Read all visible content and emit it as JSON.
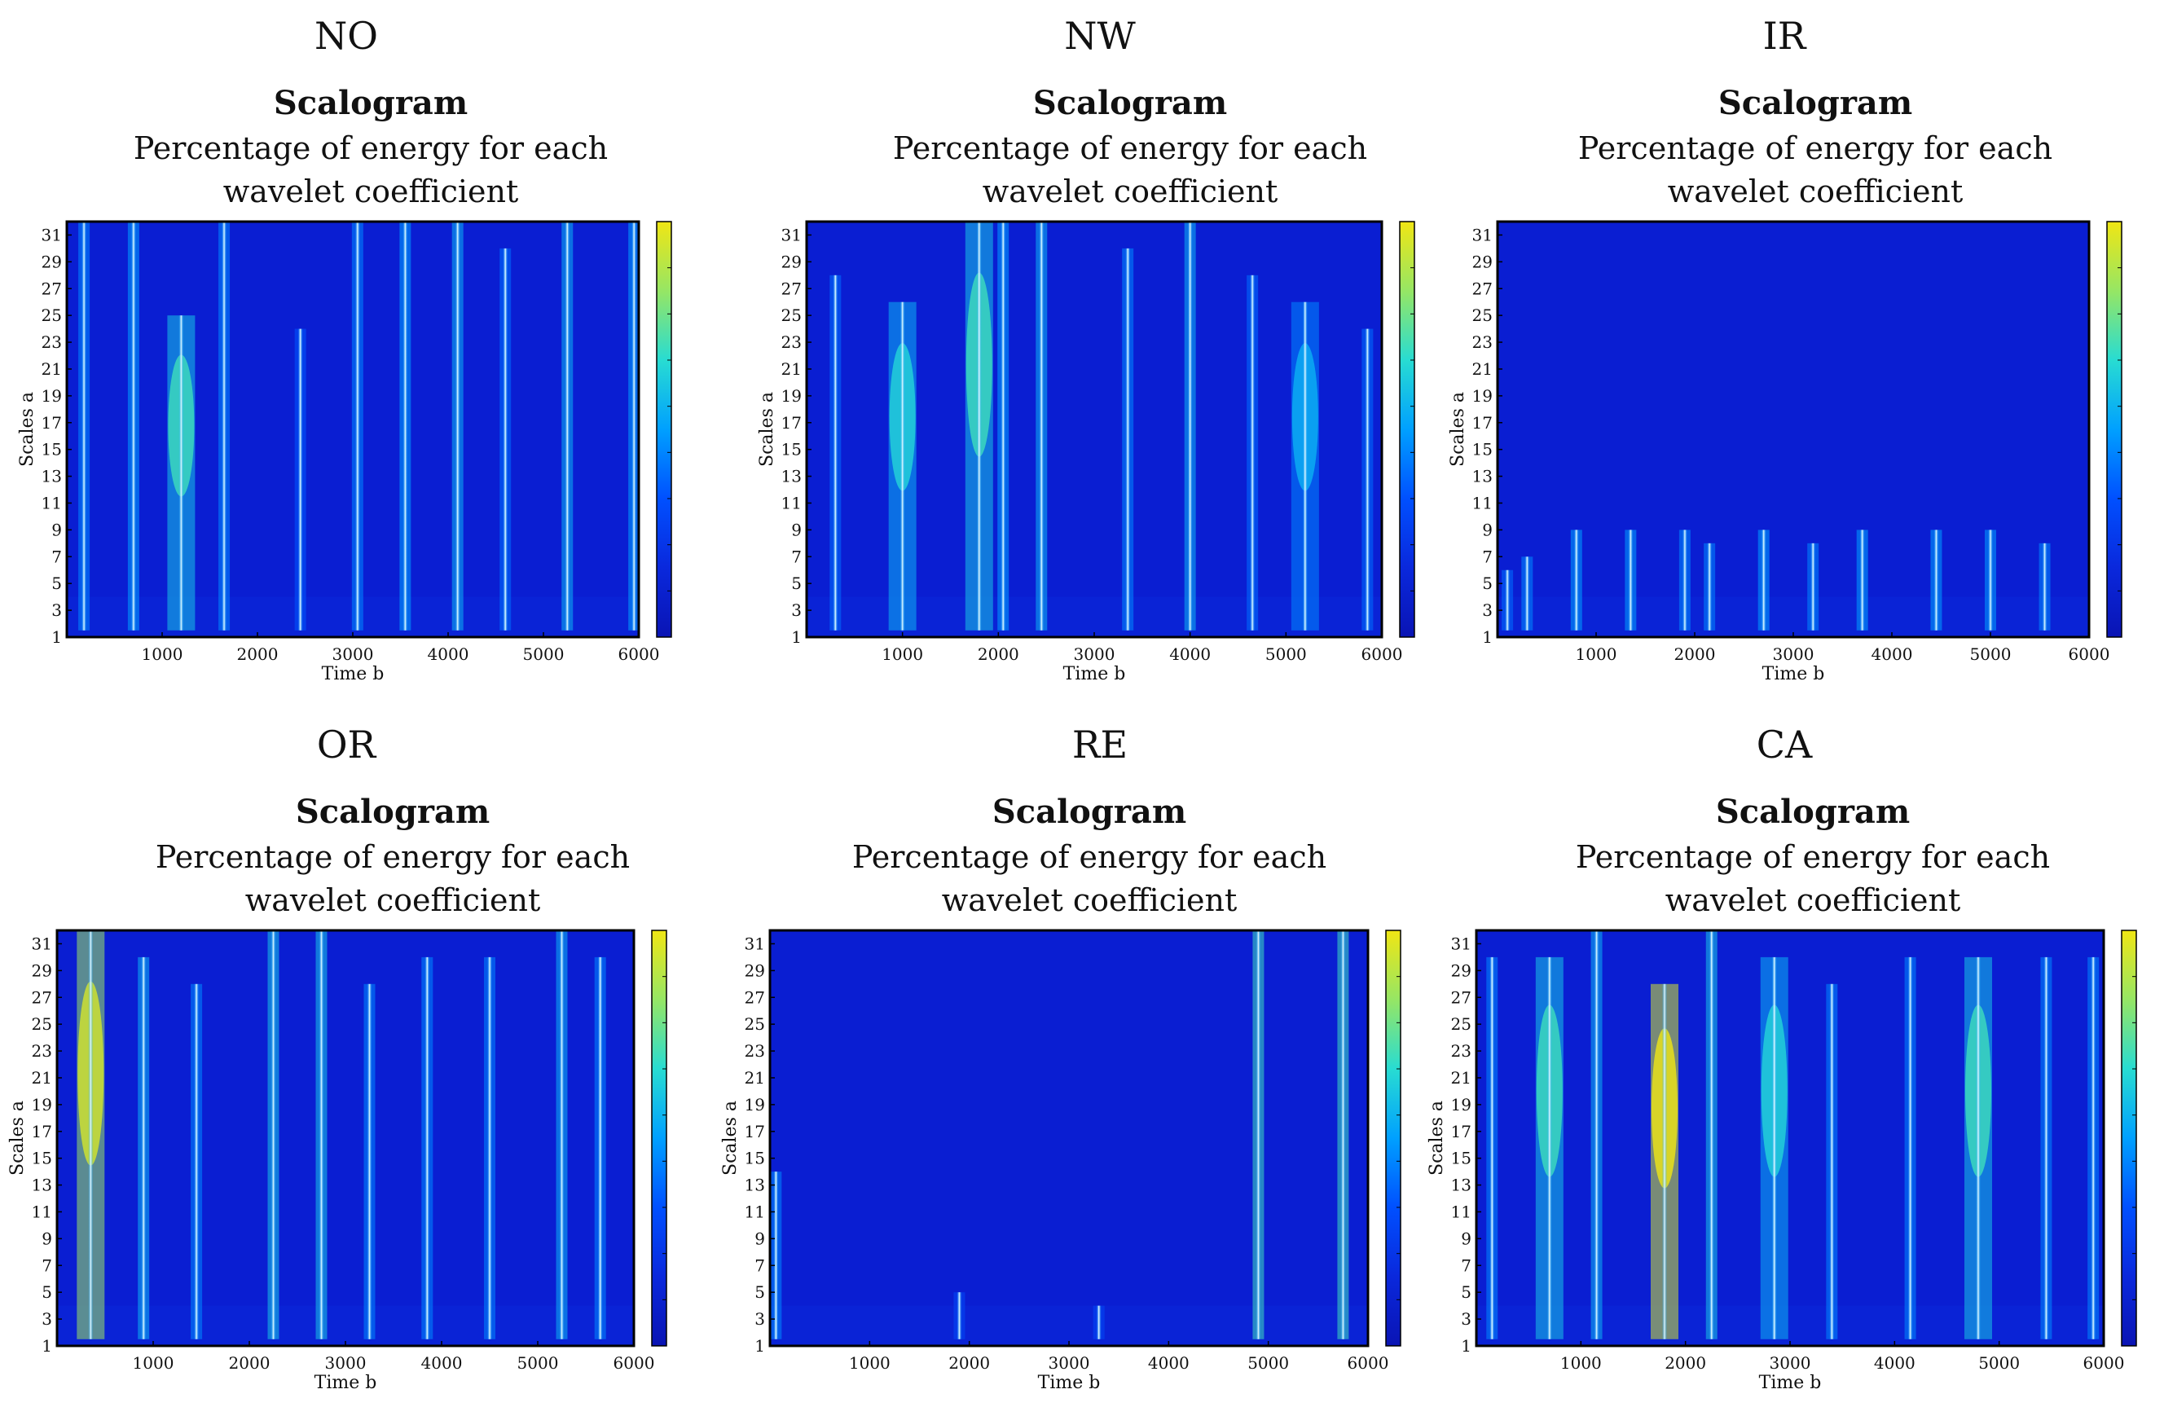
{
  "common": {
    "chart_title": "Scalogram",
    "subtitle_line1": "Percentage of energy for each",
    "subtitle_line2": "wavelet coefficient",
    "xlabel": "Time b",
    "ylabel": "Scales a",
    "x_ticks": [
      1000,
      2000,
      3000,
      4000,
      5000,
      6000
    ],
    "y_ticks": [
      1,
      3,
      5,
      7,
      9,
      11,
      13,
      15,
      17,
      19,
      21,
      23,
      25,
      27,
      29,
      31
    ],
    "xlim": [
      0,
      6000
    ],
    "ylim": [
      1,
      32
    ]
  },
  "colors": {
    "background": "#0a1ed2",
    "colormap": [
      "#0a14b4",
      "#0a28dc",
      "#0050ff",
      "#00a0ff",
      "#28dcd2",
      "#96e664",
      "#f0e614"
    ]
  },
  "chart_data": [
    {
      "type": "heatmap",
      "label": "NO",
      "title": "Scalogram",
      "xlabel": "Time b",
      "ylabel": "Scales a",
      "xlim": [
        0,
        6000
      ],
      "ylim": [
        1,
        32
      ],
      "ridges": [
        {
          "t": 180,
          "top": 32,
          "peak": 0.45
        },
        {
          "t": 700,
          "top": 32,
          "peak": 0.5
        },
        {
          "t": 1200,
          "top": 25,
          "peak": 0.6,
          "broad": true
        },
        {
          "t": 1650,
          "top": 32,
          "peak": 0.45
        },
        {
          "t": 2450,
          "top": 24,
          "peak": 0.35
        },
        {
          "t": 3050,
          "top": 32,
          "peak": 0.45
        },
        {
          "t": 3550,
          "top": 32,
          "peak": 0.5
        },
        {
          "t": 4100,
          "top": 32,
          "peak": 0.55
        },
        {
          "t": 4600,
          "top": 30,
          "peak": 0.4
        },
        {
          "t": 5250,
          "top": 32,
          "peak": 0.55
        },
        {
          "t": 5950,
          "top": 32,
          "peak": 0.5
        }
      ]
    },
    {
      "type": "heatmap",
      "label": "NW",
      "title": "Scalogram",
      "xlabel": "Time b",
      "ylabel": "Scales a",
      "xlim": [
        0,
        6000
      ],
      "ylim": [
        1,
        32
      ],
      "ridges": [
        {
          "t": 300,
          "top": 28,
          "peak": 0.4
        },
        {
          "t": 1000,
          "top": 26,
          "peak": 0.55,
          "broad": true
        },
        {
          "t": 1800,
          "top": 32,
          "peak": 0.6,
          "broad": true
        },
        {
          "t": 2050,
          "top": 32,
          "peak": 0.5
        },
        {
          "t": 2450,
          "top": 32,
          "peak": 0.55
        },
        {
          "t": 3350,
          "top": 30,
          "peak": 0.45
        },
        {
          "t": 4000,
          "top": 32,
          "peak": 0.55
        },
        {
          "t": 4650,
          "top": 28,
          "peak": 0.4
        },
        {
          "t": 5200,
          "top": 26,
          "peak": 0.45,
          "broad": true
        },
        {
          "t": 5850,
          "top": 24,
          "peak": 0.4
        }
      ]
    },
    {
      "type": "heatmap",
      "label": "IR",
      "title": "Scalogram",
      "xlabel": "Time b",
      "ylabel": "Scales a",
      "xlim": [
        0,
        6000
      ],
      "ylim": [
        1,
        32
      ],
      "ridges": [
        {
          "t": 100,
          "top": 6,
          "peak": 0.4
        },
        {
          "t": 300,
          "top": 7,
          "peak": 0.45
        },
        {
          "t": 800,
          "top": 9,
          "peak": 0.5
        },
        {
          "t": 1350,
          "top": 9,
          "peak": 0.5
        },
        {
          "t": 1900,
          "top": 9,
          "peak": 0.45
        },
        {
          "t": 2150,
          "top": 8,
          "peak": 0.45
        },
        {
          "t": 2700,
          "top": 9,
          "peak": 0.5
        },
        {
          "t": 3200,
          "top": 8,
          "peak": 0.45
        },
        {
          "t": 3700,
          "top": 9,
          "peak": 0.5
        },
        {
          "t": 4450,
          "top": 9,
          "peak": 0.5
        },
        {
          "t": 5000,
          "top": 9,
          "peak": 0.5
        },
        {
          "t": 5550,
          "top": 8,
          "peak": 0.45
        }
      ]
    },
    {
      "type": "heatmap",
      "label": "OR",
      "title": "Scalogram",
      "xlabel": "Time b",
      "ylabel": "Scales a",
      "xlim": [
        0,
        6000
      ],
      "ylim": [
        1,
        32
      ],
      "ridges": [
        {
          "t": 350,
          "top": 32,
          "peak": 0.85,
          "broad": true
        },
        {
          "t": 900,
          "top": 30,
          "peak": 0.55
        },
        {
          "t": 1450,
          "top": 28,
          "peak": 0.45
        },
        {
          "t": 2250,
          "top": 32,
          "peak": 0.6
        },
        {
          "t": 2750,
          "top": 32,
          "peak": 0.6
        },
        {
          "t": 3250,
          "top": 28,
          "peak": 0.45
        },
        {
          "t": 3850,
          "top": 30,
          "peak": 0.45
        },
        {
          "t": 4500,
          "top": 30,
          "peak": 0.45
        },
        {
          "t": 5250,
          "top": 32,
          "peak": 0.55
        },
        {
          "t": 5650,
          "top": 30,
          "peak": 0.45
        }
      ]
    },
    {
      "type": "heatmap",
      "label": "RE",
      "title": "Scalogram",
      "xlabel": "Time b",
      "ylabel": "Scales a",
      "xlim": [
        0,
        6000
      ],
      "ylim": [
        1,
        32
      ],
      "ridges": [
        {
          "t": 60,
          "top": 14,
          "peak": 0.45
        },
        {
          "t": 1900,
          "top": 5,
          "peak": 0.3
        },
        {
          "t": 3300,
          "top": 4,
          "peak": 0.3
        },
        {
          "t": 4900,
          "top": 32,
          "peak": 0.7
        },
        {
          "t": 5750,
          "top": 32,
          "peak": 0.7
        }
      ]
    },
    {
      "type": "heatmap",
      "label": "CA",
      "title": "Scalogram",
      "xlabel": "Time b",
      "ylabel": "Scales a",
      "xlim": [
        0,
        6000
      ],
      "ylim": [
        1,
        32
      ],
      "ridges": [
        {
          "t": 150,
          "top": 30,
          "peak": 0.45
        },
        {
          "t": 700,
          "top": 30,
          "peak": 0.6,
          "broad": true
        },
        {
          "t": 1150,
          "top": 32,
          "peak": 0.55
        },
        {
          "t": 1800,
          "top": 28,
          "peak": 0.95,
          "broad": true
        },
        {
          "t": 2250,
          "top": 32,
          "peak": 0.6
        },
        {
          "t": 2850,
          "top": 30,
          "peak": 0.55,
          "broad": true
        },
        {
          "t": 3400,
          "top": 28,
          "peak": 0.45
        },
        {
          "t": 4150,
          "top": 30,
          "peak": 0.45
        },
        {
          "t": 4800,
          "top": 30,
          "peak": 0.6,
          "broad": true
        },
        {
          "t": 5450,
          "top": 30,
          "peak": 0.45
        },
        {
          "t": 5900,
          "top": 30,
          "peak": 0.45
        }
      ]
    }
  ]
}
